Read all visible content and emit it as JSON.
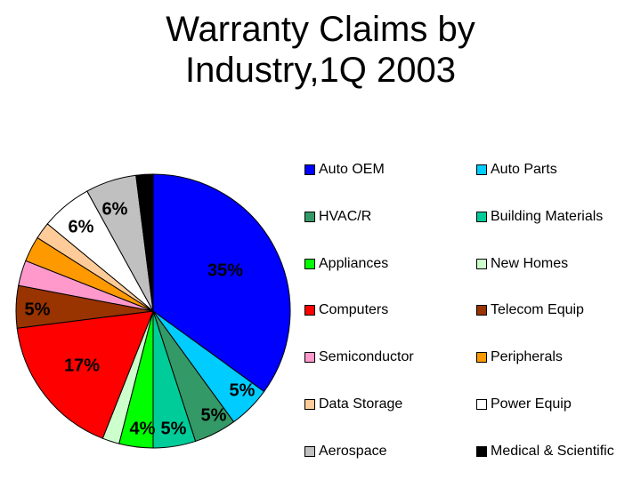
{
  "chart_data": {
    "type": "pie",
    "title": [
      "Warranty Claims by",
      "Industry,1Q 2003"
    ],
    "slices": [
      {
        "name": "Auto OEM",
        "value": 35,
        "label": "35%",
        "color": "#0000ff"
      },
      {
        "name": "Auto Parts",
        "value": 5,
        "label": "5%",
        "color": "#00ccff"
      },
      {
        "name": "HVAC/R",
        "value": 5,
        "label": "5%",
        "color": "#339966"
      },
      {
        "name": "Building Materials",
        "value": 5,
        "label": "5%",
        "color": "#00cc99"
      },
      {
        "name": "Appliances",
        "value": 4,
        "label": "4%",
        "color": "#00ff00"
      },
      {
        "name": "New Homes",
        "value": 2,
        "label": "",
        "color": "#ccffcc"
      },
      {
        "name": "Computers",
        "value": 17,
        "label": "17%",
        "color": "#ff0000"
      },
      {
        "name": "Telecom Equip",
        "value": 5,
        "label": "5%",
        "color": "#993300"
      },
      {
        "name": "Semiconductor",
        "value": 3,
        "label": "",
        "color": "#ff99cc"
      },
      {
        "name": "Peripherals",
        "value": 3,
        "label": "",
        "color": "#ff9900"
      },
      {
        "name": "Data Storage",
        "value": 2,
        "label": "",
        "color": "#ffcc99"
      },
      {
        "name": "Power Equip",
        "value": 6,
        "label": "6%",
        "color": "#ffffff"
      },
      {
        "name": "Aerospace",
        "value": 6,
        "label": "6%",
        "color": "#c0c0c0"
      },
      {
        "name": "Medical & Scientific",
        "value": 2,
        "label": "",
        "color": "#000000"
      }
    ],
    "legend_position": "right"
  }
}
